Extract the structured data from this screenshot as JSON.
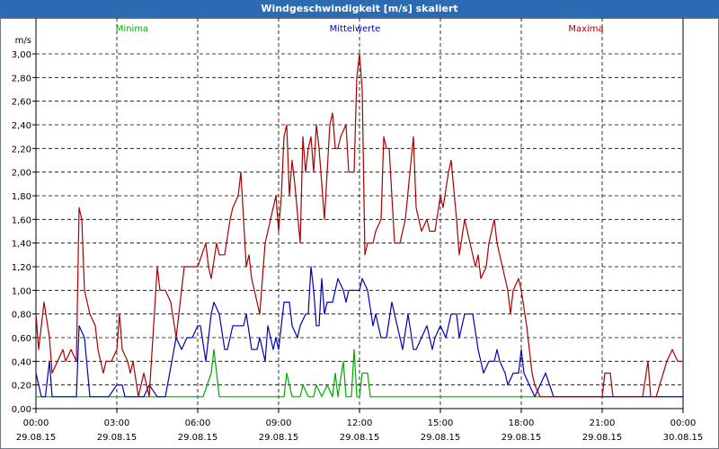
{
  "window": {
    "title": "Windgeschwindigkeit [m/s] skaliert"
  },
  "chart_data": {
    "type": "line",
    "title": "Windgeschwindigkeit [m/s] skaliert",
    "ylabel": "m/s",
    "xlabel": "",
    "ylim": [
      0,
      3.0
    ],
    "xlim": [
      0,
      24
    ],
    "grid": true,
    "legend_position": "top",
    "x_ticks": [
      {
        "time": "00:00",
        "date": "29.08.15",
        "hour": 0
      },
      {
        "time": "03:00",
        "date": "29.08.15",
        "hour": 3
      },
      {
        "time": "06:00",
        "date": "29.08.15",
        "hour": 6
      },
      {
        "time": "09:00",
        "date": "29.08.15",
        "hour": 9
      },
      {
        "time": "12:00",
        "date": "29.08.15",
        "hour": 12
      },
      {
        "time": "15:00",
        "date": "29.08.15",
        "hour": 15
      },
      {
        "time": "18:00",
        "date": "29.08.15",
        "hour": 18
      },
      {
        "time": "21:00",
        "date": "29.08.15",
        "hour": 21
      },
      {
        "time": "00:00",
        "date": "30.08.15",
        "hour": 24
      }
    ],
    "y_ticks": [
      "0,00",
      "0,20",
      "0,40",
      "0,60",
      "0,80",
      "1,00",
      "1,20",
      "1,40",
      "1,60",
      "1,80",
      "2,00",
      "2,20",
      "2,40",
      "2,60",
      "2,80",
      "3,00"
    ],
    "series": [
      {
        "name": "Minima",
        "color": "#00aa00",
        "points": [
          [
            0,
            0.1
          ],
          [
            1.5,
            0.1
          ],
          [
            2,
            0.1
          ],
          [
            3,
            0.1
          ],
          [
            4.5,
            0.1
          ],
          [
            5,
            0.1
          ],
          [
            6,
            0.1
          ],
          [
            6.2,
            0.1
          ],
          [
            6.5,
            0.3
          ],
          [
            6.6,
            0.5
          ],
          [
            6.8,
            0.1
          ],
          [
            7.5,
            0.1
          ],
          [
            9,
            0.1
          ],
          [
            9.2,
            0.1
          ],
          [
            9.3,
            0.3
          ],
          [
            9.5,
            0.1
          ],
          [
            9.8,
            0.1
          ],
          [
            9.9,
            0.2
          ],
          [
            10.1,
            0.1
          ],
          [
            10.3,
            0.1
          ],
          [
            10.4,
            0.2
          ],
          [
            10.6,
            0.1
          ],
          [
            10.8,
            0.2
          ],
          [
            11,
            0.1
          ],
          [
            11.1,
            0.3
          ],
          [
            11.2,
            0.1
          ],
          [
            11.4,
            0.4
          ],
          [
            11.5,
            0.1
          ],
          [
            11.7,
            0.1
          ],
          [
            11.8,
            0.5
          ],
          [
            11.9,
            0.1
          ],
          [
            12,
            0.1
          ],
          [
            12.1,
            0.3
          ],
          [
            12.3,
            0.3
          ],
          [
            12.4,
            0.1
          ],
          [
            15,
            0.1
          ],
          [
            18,
            0.1
          ],
          [
            21,
            0.1
          ],
          [
            24,
            0.1
          ]
        ]
      },
      {
        "name": "Mittelwerte",
        "color": "#0000bb",
        "points": [
          [
            0,
            0.3
          ],
          [
            0.2,
            0.1
          ],
          [
            0.35,
            0.1
          ],
          [
            0.5,
            0.4
          ],
          [
            0.6,
            0.1
          ],
          [
            1,
            0.1
          ],
          [
            1.5,
            0.1
          ],
          [
            1.6,
            0.7
          ],
          [
            1.8,
            0.6
          ],
          [
            2,
            0.1
          ],
          [
            2.3,
            0.1
          ],
          [
            2.5,
            0.1
          ],
          [
            2.7,
            0.1
          ],
          [
            3,
            0.2
          ],
          [
            3.2,
            0.2
          ],
          [
            3.3,
            0.1
          ],
          [
            3.5,
            0.1
          ],
          [
            4,
            0.1
          ],
          [
            4.2,
            0.2
          ],
          [
            4.5,
            0.1
          ],
          [
            4.8,
            0.1
          ],
          [
            5.2,
            0.6
          ],
          [
            5.4,
            0.5
          ],
          [
            5.6,
            0.6
          ],
          [
            5.8,
            0.6
          ],
          [
            6,
            0.7
          ],
          [
            6.1,
            0.7
          ],
          [
            6.3,
            0.4
          ],
          [
            6.5,
            0.8
          ],
          [
            6.6,
            0.9
          ],
          [
            6.8,
            0.8
          ],
          [
            7,
            0.5
          ],
          [
            7.1,
            0.5
          ],
          [
            7.3,
            0.7
          ],
          [
            7.5,
            0.7
          ],
          [
            7.7,
            0.7
          ],
          [
            7.8,
            0.8
          ],
          [
            8,
            0.5
          ],
          [
            8.2,
            0.5
          ],
          [
            8.3,
            0.6
          ],
          [
            8.5,
            0.4
          ],
          [
            8.6,
            0.7
          ],
          [
            8.8,
            0.5
          ],
          [
            8.9,
            0.6
          ],
          [
            9,
            0.5
          ],
          [
            9.1,
            0.7
          ],
          [
            9.2,
            0.9
          ],
          [
            9.4,
            0.9
          ],
          [
            9.5,
            0.7
          ],
          [
            9.7,
            0.6
          ],
          [
            9.8,
            0.7
          ],
          [
            10,
            0.8
          ],
          [
            10.1,
            0.8
          ],
          [
            10.2,
            1.2
          ],
          [
            10.3,
            1.0
          ],
          [
            10.4,
            0.7
          ],
          [
            10.5,
            0.7
          ],
          [
            10.6,
            1.1
          ],
          [
            10.7,
            0.8
          ],
          [
            10.8,
            0.9
          ],
          [
            10.9,
            0.9
          ],
          [
            11,
            0.9
          ],
          [
            11.2,
            1.1
          ],
          [
            11.4,
            1.0
          ],
          [
            11.5,
            0.9
          ],
          [
            11.6,
            1.0
          ],
          [
            11.8,
            1.0
          ],
          [
            12,
            1.0
          ],
          [
            12.1,
            1.1
          ],
          [
            12.3,
            1.0
          ],
          [
            12.5,
            0.7
          ],
          [
            12.6,
            0.8
          ],
          [
            12.8,
            0.6
          ],
          [
            13,
            0.6
          ],
          [
            13.2,
            0.9
          ],
          [
            13.5,
            0.6
          ],
          [
            13.6,
            0.5
          ],
          [
            13.8,
            0.8
          ],
          [
            14,
            0.5
          ],
          [
            14.1,
            0.5
          ],
          [
            14.3,
            0.6
          ],
          [
            14.5,
            0.7
          ],
          [
            14.7,
            0.5
          ],
          [
            14.8,
            0.6
          ],
          [
            15,
            0.7
          ],
          [
            15.2,
            0.6
          ],
          [
            15.4,
            0.8
          ],
          [
            15.6,
            0.8
          ],
          [
            15.7,
            0.6
          ],
          [
            15.9,
            0.8
          ],
          [
            16,
            0.8
          ],
          [
            16.2,
            0.8
          ],
          [
            16.4,
            0.5
          ],
          [
            16.6,
            0.3
          ],
          [
            16.8,
            0.4
          ],
          [
            17,
            0.4
          ],
          [
            17.1,
            0.5
          ],
          [
            17.2,
            0.4
          ],
          [
            17.4,
            0.3
          ],
          [
            17.5,
            0.2
          ],
          [
            17.7,
            0.3
          ],
          [
            17.9,
            0.3
          ],
          [
            18,
            0.5
          ],
          [
            18.1,
            0.3
          ],
          [
            18.3,
            0.2
          ],
          [
            18.5,
            0.1
          ],
          [
            18.7,
            0.2
          ],
          [
            18.9,
            0.3
          ],
          [
            19.2,
            0.1
          ],
          [
            19.5,
            0.1
          ],
          [
            21,
            0.1
          ],
          [
            24,
            0.1
          ]
        ]
      },
      {
        "name": "Maxima",
        "color": "#aa0000",
        "points": [
          [
            0,
            0.8
          ],
          [
            0.1,
            0.5
          ],
          [
            0.3,
            0.9
          ],
          [
            0.5,
            0.6
          ],
          [
            0.6,
            0.3
          ],
          [
            1,
            0.5
          ],
          [
            1.1,
            0.4
          ],
          [
            1.3,
            0.5
          ],
          [
            1.5,
            0.4
          ],
          [
            1.6,
            1.7
          ],
          [
            1.7,
            1.6
          ],
          [
            1.8,
            1.0
          ],
          [
            2,
            0.8
          ],
          [
            2.2,
            0.7
          ],
          [
            2.3,
            0.5
          ],
          [
            2.5,
            0.3
          ],
          [
            2.6,
            0.4
          ],
          [
            2.8,
            0.4
          ],
          [
            3,
            0.5
          ],
          [
            3.1,
            0.8
          ],
          [
            3.2,
            0.5
          ],
          [
            3.4,
            0.4
          ],
          [
            3.5,
            0.3
          ],
          [
            3.6,
            0.4
          ],
          [
            3.8,
            0.1
          ],
          [
            4,
            0.3
          ],
          [
            4.1,
            0.2
          ],
          [
            4.2,
            0.1
          ],
          [
            4.5,
            1.2
          ],
          [
            4.6,
            1.0
          ],
          [
            4.8,
            1.0
          ],
          [
            5,
            0.9
          ],
          [
            5.2,
            0.6
          ],
          [
            5.5,
            1.2
          ],
          [
            5.8,
            1.2
          ],
          [
            6,
            1.2
          ],
          [
            6.3,
            1.4
          ],
          [
            6.4,
            1.2
          ],
          [
            6.5,
            1.1
          ],
          [
            6.7,
            1.4
          ],
          [
            6.8,
            1.3
          ],
          [
            7,
            1.3
          ],
          [
            7.2,
            1.6
          ],
          [
            7.3,
            1.7
          ],
          [
            7.5,
            1.8
          ],
          [
            7.6,
            2.0
          ],
          [
            7.8,
            1.2
          ],
          [
            7.9,
            1.3
          ],
          [
            8,
            1.1
          ],
          [
            8.1,
            1.0
          ],
          [
            8.3,
            0.8
          ],
          [
            8.5,
            1.4
          ],
          [
            8.6,
            1.5
          ],
          [
            8.8,
            1.7
          ],
          [
            8.9,
            1.8
          ],
          [
            9,
            1.5
          ],
          [
            9.1,
            1.8
          ],
          [
            9.2,
            2.3
          ],
          [
            9.3,
            2.4
          ],
          [
            9.4,
            1.8
          ],
          [
            9.5,
            2.1
          ],
          [
            9.6,
            1.9
          ],
          [
            9.8,
            1.4
          ],
          [
            9.9,
            2.3
          ],
          [
            10,
            2.0
          ],
          [
            10.1,
            2.2
          ],
          [
            10.2,
            2.3
          ],
          [
            10.3,
            2.0
          ],
          [
            10.4,
            2.4
          ],
          [
            10.5,
            2.2
          ],
          [
            10.6,
            1.9
          ],
          [
            10.7,
            1.6
          ],
          [
            10.9,
            2.4
          ],
          [
            11,
            2.5
          ],
          [
            11.1,
            2.2
          ],
          [
            11.2,
            2.2
          ],
          [
            11.3,
            2.3
          ],
          [
            11.5,
            2.4
          ],
          [
            11.6,
            2.0
          ],
          [
            11.8,
            2.0
          ],
          [
            11.9,
            2.8
          ],
          [
            12,
            3.0
          ],
          [
            12.1,
            2.7
          ],
          [
            12.2,
            1.3
          ],
          [
            12.3,
            1.4
          ],
          [
            12.5,
            1.4
          ],
          [
            12.6,
            1.5
          ],
          [
            12.8,
            1.6
          ],
          [
            12.9,
            2.3
          ],
          [
            13,
            2.2
          ],
          [
            13.1,
            2.2
          ],
          [
            13.3,
            1.4
          ],
          [
            13.5,
            1.4
          ],
          [
            13.7,
            1.6
          ],
          [
            14,
            2.3
          ],
          [
            14.1,
            1.7
          ],
          [
            14.3,
            1.5
          ],
          [
            14.5,
            1.6
          ],
          [
            14.6,
            1.5
          ],
          [
            14.8,
            1.5
          ],
          [
            15,
            1.8
          ],
          [
            15.1,
            1.7
          ],
          [
            15.3,
            2.0
          ],
          [
            15.4,
            2.1
          ],
          [
            15.6,
            1.6
          ],
          [
            15.7,
            1.3
          ],
          [
            15.9,
            1.6
          ],
          [
            16,
            1.5
          ],
          [
            16.1,
            1.4
          ],
          [
            16.3,
            1.2
          ],
          [
            16.4,
            1.3
          ],
          [
            16.5,
            1.1
          ],
          [
            16.7,
            1.2
          ],
          [
            16.8,
            1.4
          ],
          [
            17,
            1.6
          ],
          [
            17.1,
            1.4
          ],
          [
            17.3,
            1.2
          ],
          [
            17.5,
            1.0
          ],
          [
            17.6,
            0.8
          ],
          [
            17.7,
            1.0
          ],
          [
            17.9,
            1.1
          ],
          [
            18,
            1.0
          ],
          [
            18.2,
            0.7
          ],
          [
            18.3,
            0.5
          ],
          [
            18.4,
            0.3
          ],
          [
            18.5,
            0.2
          ],
          [
            18.7,
            0.1
          ],
          [
            19.5,
            0.1
          ],
          [
            21,
            0.1
          ],
          [
            21.1,
            0.3
          ],
          [
            21.3,
            0.3
          ],
          [
            21.4,
            0.1
          ],
          [
            21.7,
            0.1
          ],
          [
            22,
            0.1
          ],
          [
            22.5,
            0.1
          ],
          [
            22.7,
            0.4
          ],
          [
            22.8,
            0.1
          ],
          [
            23,
            0.1
          ],
          [
            23.4,
            0.4
          ],
          [
            23.6,
            0.5
          ],
          [
            23.8,
            0.4
          ],
          [
            24,
            0.4
          ]
        ]
      }
    ]
  }
}
